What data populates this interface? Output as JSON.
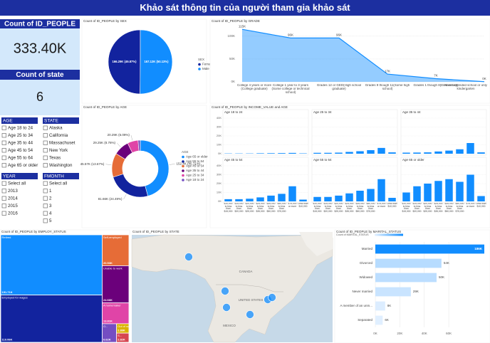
{
  "header": {
    "title": "Khảo sát thông tin của người tham gia khảo sát"
  },
  "cards": [
    {
      "label": "Count of ID_PEOPLE",
      "value": "333.40K"
    },
    {
      "label": "Count of state",
      "value": "6"
    }
  ],
  "slicers": [
    {
      "title": "AGE",
      "items": [
        "Age 18 to 24",
        "Age 25 to 34",
        "Age 35 to 44",
        "Age 45 to 54",
        "Age 55 to 64",
        "Age 65 or older"
      ]
    },
    {
      "title": "STATE",
      "items": [
        "Alaska",
        "California",
        "Massachuset",
        "New York",
        "Texas",
        "Washington"
      ]
    },
    {
      "title": "YEAR",
      "items": [
        "Select all",
        "2013",
        "2014",
        "2015",
        "2016"
      ]
    },
    {
      "title": "FMONTH",
      "items": [
        "Select all",
        "1",
        "2",
        "3",
        "4",
        "5"
      ]
    }
  ],
  "map": {
    "title": "Count of ID_PEOPLE by STATE",
    "labels": [
      "CANADA",
      "UNITED STATES",
      "MEXICO"
    ]
  },
  "chart_data": [
    {
      "type": "pie",
      "title": "Count of ID_PEOPLE by SEX",
      "legend_title": "SEX",
      "categories": [
        "Female",
        "Male"
      ],
      "values": [
        166290,
        167120
      ],
      "value_labels": [
        "166.29K (49.87%)",
        "167.12K (50.13%)"
      ],
      "colors": [
        "#12239e",
        "#118dff"
      ]
    },
    {
      "type": "area",
      "title": "Count of ID_PEOPLE by GRADE",
      "categories": [
        "College 4 years or more (College graduate)",
        "College 1 year to 3 years (Some college or technical school)",
        "Grades 12 or GED(High school graduate)",
        "Grades 9 though 11(Some high school)",
        "Grades 1 though 8(Elementary)",
        "Never attended school or only kindergarten"
      ],
      "values": [
        115000,
        96000,
        96000,
        17000,
        7000,
        400
      ],
      "value_labels": [
        "115K",
        "96K",
        "96K",
        "17K",
        "7K",
        "0K"
      ],
      "color": "#118dff",
      "ylim": [
        0,
        120000
      ],
      "yticks": [
        {
          "value": 0,
          "label": "0K"
        },
        {
          "value": 50000,
          "label": "50K"
        },
        {
          "value": 100000,
          "label": "100K"
        }
      ],
      "grid": true
    },
    {
      "type": "donut",
      "title": "Count of ID_PEOPLE by AGE",
      "legend_title": "AGE",
      "categories": [
        "Age 65 or older",
        "Age 55 to 64",
        "Age 45 to 54",
        "Age 35 to 44",
        "Age 25 to 34",
        "Age 18 to 24"
      ],
      "values": [
        152400,
        81660,
        45570,
        29250,
        20290,
        4230
      ],
      "value_labels": [
        "152.4K (45.71%)",
        "81.66K (24.49%)",
        "45.57K (13.67%)",
        "29.25K (8.76%)",
        "20.29K (6.09%)",
        null
      ],
      "colors": [
        "#118dff",
        "#12239e",
        "#e66c37",
        "#6b007b",
        "#e044a7",
        "#744ec2"
      ]
    },
    {
      "type": "small_multiples_bar",
      "title": "Count of ID_PEOPLE by INCOME_VALUE and AGE",
      "categories": [
        "$10,000 to less than $15,000",
        "$15,000 to less than $20,000",
        "$20,000 to less than $25,000",
        "$25,000 to less than $35,000",
        "$35,000 to less than $50,000",
        "$50,000 to less than $75,000",
        "$75,000 or more",
        "Less than $10,000"
      ],
      "panels": [
        {
          "title": "Age 18 to 24",
          "values": [
            300,
            300,
            300,
            500,
            600,
            700,
            900,
            400
          ]
        },
        {
          "title": "Age 25 to 34",
          "values": [
            1000,
            1000,
            1200,
            2000,
            2800,
            4000,
            6500,
            1500
          ]
        },
        {
          "title": "Age 35 to 44",
          "values": [
            1200,
            1300,
            1500,
            2500,
            3500,
            5000,
            12000,
            1500
          ]
        },
        {
          "title": "Age 45 to 54",
          "values": [
            2500,
            2500,
            3000,
            4500,
            6500,
            8500,
            17000,
            2000
          ]
        },
        {
          "title": "Age 55 to 64",
          "values": [
            5000,
            5000,
            6500,
            9000,
            12000,
            14000,
            25000,
            4000
          ]
        },
        {
          "title": "Age 65 or older",
          "values": [
            10000,
            17000,
            20000,
            23000,
            25000,
            22000,
            30000,
            6000
          ]
        }
      ],
      "color": "#118dff",
      "ylim": [
        0,
        40000
      ],
      "yticks": [
        {
          "value": 0,
          "label": "0K"
        },
        {
          "value": 10000,
          "label": "10K"
        },
        {
          "value": 20000,
          "label": "20K"
        },
        {
          "value": 30000,
          "label": "30K"
        },
        {
          "value": 40000,
          "label": "40K"
        }
      ],
      "grid": true
    },
    {
      "type": "treemap",
      "title": "Count of ID_PEOPLE by EMPLOY_STATUS",
      "categories": [
        "Retired",
        "Employed for wages",
        "Self-employed",
        "Unable to work",
        "A homemaker",
        "O...",
        "Out of work f...",
        "S..."
      ],
      "values": [
        151710,
        119060,
        20530,
        24660,
        13810,
        6620,
        2880,
        2820
      ],
      "value_labels": [
        "151.71K",
        "119.06K",
        "20.53K",
        "24.66K",
        "13.81K",
        "6.62K",
        "2.88K",
        "2.82K"
      ],
      "colors": [
        "#118dff",
        "#12239e",
        "#e66c37",
        "#6b007b",
        "#e044a7",
        "#744ec2",
        "#d9b300",
        "#d64550"
      ]
    },
    {
      "type": "hbar",
      "title": "Count of ID_PEOPLE by MARITAL_STATUS",
      "legend_title": "Count of MARITAL_STATUS",
      "categories": [
        "Married",
        "Divorced",
        "Widowed",
        "Never married",
        "A member of an unm...",
        "Separated"
      ],
      "values": [
        186000,
        54000,
        50000,
        29000,
        8000,
        6000
      ],
      "value_labels": [
        "186K",
        "54K",
        "50K",
        "29K",
        "8K",
        "6K"
      ],
      "colors": [
        "#118dff",
        "#b7dcff",
        "#bcdeff",
        "#c9e4ff",
        "#dcedff",
        "#e0efff"
      ],
      "xlim": [
        0,
        89000
      ],
      "xticks": [
        {
          "value": 0,
          "label": "0K"
        },
        {
          "value": 20000,
          "label": "20K"
        },
        {
          "value": 40000,
          "label": "40K"
        },
        {
          "value": 60000,
          "label": "60K"
        }
      ],
      "grid": true
    }
  ]
}
